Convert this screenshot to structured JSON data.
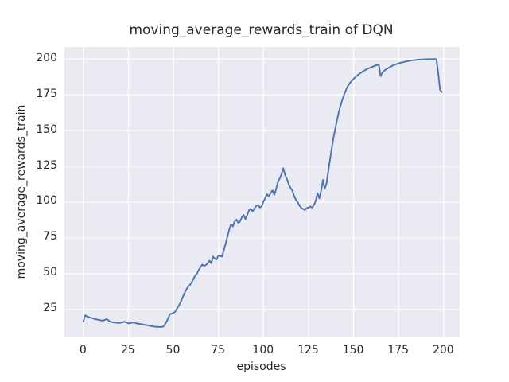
{
  "figure": {
    "title": "moving_average_rewards_train of DQN",
    "xlabel": "episodes",
    "ylabel": "moving_average_rewards_train"
  },
  "chart_data": {
    "type": "line",
    "title": "moving_average_rewards_train of DQN",
    "xlabel": "episodes",
    "ylabel": "moving_average_rewards_train",
    "legend": "none",
    "grid": true,
    "style": "seaborn-darkgrid",
    "plot_bg_color": "#eaeaf2",
    "grid_color": "#ffffff",
    "line_color": "#4c72b0",
    "text_color": "#262626",
    "xlim": [
      -10.5,
      208.9
    ],
    "ylim": [
      5.4,
      208.5
    ],
    "xticks": [
      0,
      25,
      50,
      75,
      100,
      125,
      150,
      175,
      200
    ],
    "yticks": [
      25,
      50,
      75,
      100,
      125,
      150,
      175,
      200
    ],
    "x_start": 0,
    "x_step": 1,
    "values": [
      16.5,
      20.8,
      20.3,
      19.6,
      19.2,
      18.9,
      18.4,
      18.1,
      17.8,
      17.6,
      17.3,
      17.2,
      17.7,
      18.2,
      17.2,
      16.4,
      16.1,
      15.9,
      15.7,
      15.6,
      15.5,
      15.7,
      16.1,
      16.4,
      15.8,
      15.2,
      15.4,
      15.7,
      15.8,
      15.4,
      15.1,
      14.9,
      14.7,
      14.5,
      14.3,
      14.0,
      13.7,
      13.5,
      13.2,
      13.0,
      12.8,
      12.8,
      12.7,
      12.7,
      12.8,
      13.8,
      16.0,
      18.5,
      21.5,
      22.0,
      22.5,
      23.5,
      25.5,
      27.6,
      30.0,
      33.0,
      36.0,
      38.5,
      40.6,
      42.0,
      43.5,
      46.0,
      48.5,
      49.8,
      52.5,
      54.5,
      56.3,
      55.4,
      56.0,
      57.2,
      59.1,
      57.2,
      61.9,
      60.5,
      60.0,
      62.8,
      62.2,
      61.9,
      66.5,
      71.0,
      76.0,
      81.0,
      84.5,
      83.0,
      86.5,
      87.8,
      85.5,
      86.5,
      89.5,
      91.0,
      88.0,
      91.0,
      94.5,
      95.2,
      93.5,
      95.5,
      97.5,
      98.0,
      96.3,
      97.0,
      100.5,
      103.0,
      105.5,
      104.0,
      106.5,
      108.2,
      105.0,
      109.0,
      114.0,
      116.5,
      119.5,
      123.7,
      119.0,
      116.0,
      112.5,
      110.0,
      108.0,
      104.5,
      101.5,
      100.0,
      97.5,
      96.0,
      95.2,
      94.3,
      96.0,
      96.0,
      97.0,
      96.1,
      98.0,
      101.0,
      106.3,
      102.6,
      108.0,
      115.5,
      109.5,
      113.0,
      122.0,
      130.5,
      138.5,
      146.0,
      152.5,
      158.5,
      164.0,
      168.5,
      172.5,
      176.0,
      179.0,
      181.5,
      183.3,
      184.8,
      186.2,
      187.4,
      188.5,
      189.5,
      190.4,
      191.2,
      192.0,
      192.7,
      193.3,
      193.9,
      194.4,
      194.9,
      195.4,
      195.8,
      196.2,
      188.0,
      190.5,
      191.8,
      192.8,
      193.6,
      194.3,
      195.0,
      195.6,
      196.1,
      196.6,
      197.0,
      197.4,
      197.7,
      198.0,
      198.3,
      198.6,
      198.8,
      199.0,
      199.2,
      199.3,
      199.5,
      199.6,
      199.7,
      199.8,
      199.8,
      199.9,
      199.9,
      200.0,
      200.0,
      200.0,
      200.0,
      199.9,
      190.0,
      178.5,
      177.0
    ]
  }
}
